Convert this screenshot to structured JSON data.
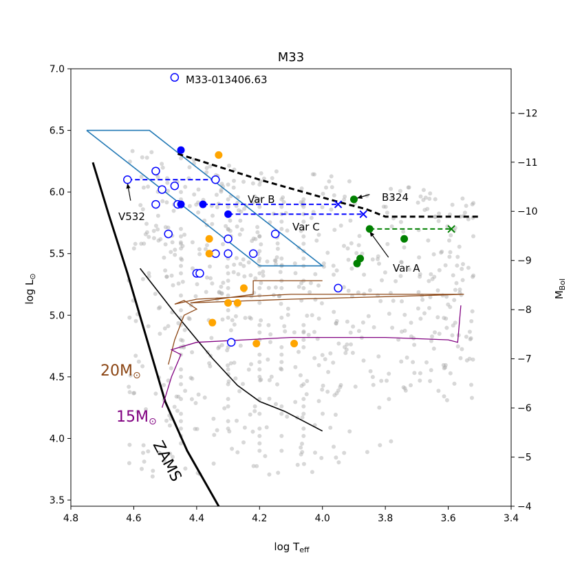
{
  "chart_data": {
    "type": "scatter",
    "title": "M33",
    "xlabel": "log T",
    "xlabel_sub": "eff",
    "ylabel": "log L",
    "ylabel_sym": "⊙",
    "y2label": "M",
    "y2label_sub": "Bol",
    "xlim": [
      4.8,
      3.4
    ],
    "ylim": [
      3.45,
      7.0
    ],
    "y2lim": [
      -4.0,
      -12.9
    ],
    "xticks": [
      4.8,
      4.6,
      4.4,
      4.2,
      4.0,
      3.8,
      3.6,
      3.4
    ],
    "xtick_labels": [
      "4.8",
      "4.6",
      "4.4",
      "4.2",
      "4.0",
      "3.8",
      "3.6",
      "3.4"
    ],
    "yticks": [
      3.5,
      4.0,
      4.5,
      5.0,
      5.5,
      6.0,
      6.5,
      7.0
    ],
    "ytick_labels": [
      "3.5",
      "4.0",
      "4.5",
      "5.0",
      "5.5",
      "6.0",
      "6.5",
      "7.0"
    ],
    "y2ticks": [
      -4,
      -5,
      -6,
      -7,
      -8,
      -9,
      -10,
      -11,
      -12
    ],
    "y2tick_labels": [
      "−4",
      "−5",
      "−6",
      "−7",
      "−8",
      "−9",
      "−10",
      "−11",
      "−12"
    ],
    "colors": {
      "gray": "#a9a9a9",
      "blue": "#0000ff",
      "orange": "#ffa500",
      "green": "#008000",
      "box": "#1f77b4",
      "brown": "#8b4513",
      "purple": "#800080",
      "black": "#000000"
    },
    "annotations": {
      "m33_name": "M33-013406.63",
      "v532": "V532",
      "var_b": "Var B",
      "var_c": "Var C",
      "var_a": "Var A",
      "b324": "B324",
      "track20": "20M",
      "track15": "15M",
      "sun": "⊙",
      "zams": "ZAMS"
    },
    "series": [
      {
        "name": "blue-open",
        "style": "open-circle",
        "points": [
          [
            4.47,
            6.93
          ],
          [
            4.62,
            6.1
          ],
          [
            4.53,
            6.17
          ],
          [
            4.51,
            6.02
          ],
          [
            4.47,
            6.05
          ],
          [
            4.34,
            6.1
          ],
          [
            4.53,
            5.9
          ],
          [
            4.46,
            5.9
          ],
          [
            4.49,
            5.66
          ],
          [
            4.3,
            5.62
          ],
          [
            4.15,
            5.66
          ],
          [
            4.34,
            5.5
          ],
          [
            4.3,
            5.5
          ],
          [
            4.22,
            5.5
          ],
          [
            4.4,
            5.34
          ],
          [
            4.39,
            5.34
          ],
          [
            4.29,
            4.78
          ],
          [
            3.95,
            5.22
          ]
        ]
      },
      {
        "name": "blue-filled",
        "style": "filled-circle",
        "points": [
          [
            4.45,
            6.34
          ],
          [
            4.45,
            5.9
          ],
          [
            4.38,
            5.9
          ],
          [
            4.3,
            5.82
          ]
        ]
      },
      {
        "name": "orange",
        "style": "filled-circle",
        "points": [
          [
            4.33,
            6.3
          ],
          [
            4.36,
            5.62
          ],
          [
            4.36,
            5.5
          ],
          [
            4.25,
            5.22
          ],
          [
            4.3,
            5.1
          ],
          [
            4.27,
            5.1
          ],
          [
            4.35,
            4.94
          ],
          [
            4.21,
            4.77
          ],
          [
            4.09,
            4.77
          ]
        ]
      },
      {
        "name": "green",
        "style": "filled-circle",
        "points": [
          [
            3.9,
            5.94
          ],
          [
            3.85,
            5.7
          ],
          [
            3.74,
            5.62
          ],
          [
            3.88,
            5.46
          ],
          [
            3.89,
            5.42
          ]
        ]
      },
      {
        "name": "green-x",
        "style": "x",
        "points": [
          [
            3.59,
            5.7
          ]
        ]
      },
      {
        "name": "blue-x",
        "style": "x",
        "points": [
          [
            3.95,
            5.9
          ],
          [
            3.87,
            5.82
          ]
        ]
      }
    ],
    "lines": {
      "humphreys_davidson": [
        [
          4.46,
          6.31
        ],
        [
          4.2,
          6.1
        ],
        [
          3.95,
          5.92
        ],
        [
          3.86,
          5.86
        ],
        [
          3.8,
          5.8
        ],
        [
          3.5,
          5.8
        ]
      ],
      "v532_dash": [
        [
          4.62,
          6.1
        ],
        [
          4.34,
          6.1
        ]
      ],
      "var_b_dash": [
        [
          4.38,
          5.9
        ],
        [
          3.95,
          5.9
        ]
      ],
      "var_c_dash": [
        [
          4.3,
          5.82
        ],
        [
          3.87,
          5.82
        ]
      ],
      "var_a_dash": [
        [
          3.85,
          5.7
        ],
        [
          3.59,
          5.7
        ]
      ],
      "box": [
        [
          4.75,
          6.5
        ],
        [
          4.55,
          6.5
        ],
        [
          4.0,
          5.4
        ],
        [
          4.2,
          5.4
        ],
        [
          4.75,
          6.5
        ]
      ],
      "zams": [
        [
          4.73,
          6.24
        ],
        [
          4.68,
          5.82
        ],
        [
          4.62,
          5.34
        ],
        [
          4.56,
          4.82
        ],
        [
          4.5,
          4.3
        ],
        [
          4.43,
          3.9
        ],
        [
          4.33,
          3.45
        ]
      ],
      "inner_line": [
        [
          4.58,
          5.38
        ],
        [
          4.47,
          5.02
        ],
        [
          4.35,
          4.65
        ],
        [
          4.27,
          4.43
        ],
        [
          4.2,
          4.3
        ],
        [
          4.12,
          4.22
        ],
        [
          4.0,
          4.06
        ]
      ],
      "track20": [
        [
          4.49,
          4.6
        ],
        [
          4.47,
          4.8
        ],
        [
          4.44,
          5.0
        ],
        [
          4.4,
          5.05
        ],
        [
          4.44,
          5.12
        ],
        [
          4.47,
          5.09
        ],
        [
          4.4,
          5.13
        ],
        [
          4.1,
          5.17
        ],
        [
          3.8,
          5.17
        ],
        [
          3.55,
          5.17
        ],
        [
          3.8,
          5.15
        ],
        [
          4.1,
          5.13
        ],
        [
          4.42,
          5.1
        ],
        [
          4.22,
          5.17
        ],
        [
          4.22,
          5.28
        ],
        [
          4.0,
          5.28
        ]
      ],
      "track15": [
        [
          4.51,
          4.25
        ],
        [
          4.48,
          4.5
        ],
        [
          4.45,
          4.68
        ],
        [
          4.48,
          4.72
        ],
        [
          4.4,
          4.78
        ],
        [
          4.1,
          4.82
        ],
        [
          3.8,
          4.82
        ],
        [
          3.6,
          4.8
        ],
        [
          3.57,
          4.78
        ],
        [
          3.56,
          5.08
        ]
      ]
    },
    "arrows": [
      {
        "label": "v532",
        "from": [
          4.61,
          5.93
        ],
        "to": [
          4.62,
          6.07
        ]
      },
      {
        "label": "b324",
        "from": [
          3.85,
          5.98
        ],
        "to": [
          3.89,
          5.95
        ]
      },
      {
        "label": "var_a",
        "from": [
          3.79,
          5.47
        ],
        "to": [
          3.85,
          5.68
        ]
      }
    ]
  }
}
